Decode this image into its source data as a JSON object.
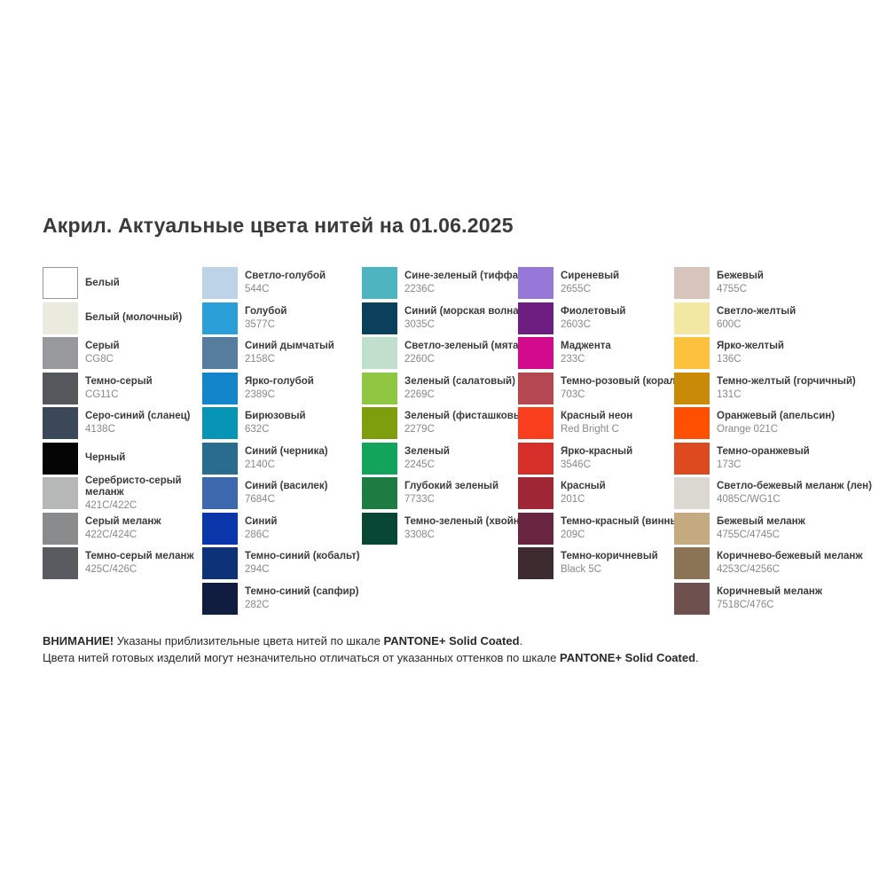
{
  "title": "Акрил. Актуальные цвета нитей на 01.06.2025",
  "pantone_scale": "PANTONE+ Solid Coated",
  "columns": [
    {
      "items": [
        {
          "name": "Белый",
          "code": "",
          "color": "#FFFFFF",
          "border": true
        },
        {
          "name": "Белый (молочный)",
          "code": "",
          "color": "#EAEADF"
        },
        {
          "name": "Серый",
          "code": "CG8C",
          "color": "#97999C"
        },
        {
          "name": "Темно-серый",
          "code": "CG11C",
          "color": "#54575B"
        },
        {
          "name": "Серо-синий (сланец)",
          "code": "4138C",
          "color": "#3A4857"
        },
        {
          "name": "Черный",
          "code": "",
          "color": "#050505"
        },
        {
          "name": "Серебристо-серый меланж",
          "code": "421C/422C",
          "color": "#B6B8B7",
          "wrap": true
        },
        {
          "name": "Серый меланж",
          "code": "422C/424C",
          "color": "#898B8D"
        },
        {
          "name": "Темно-серый меланж",
          "code": "425C/426C",
          "color": "#585B5F"
        }
      ]
    },
    {
      "items": [
        {
          "name": "Светло-голубой",
          "code": "544C",
          "color": "#BCD4E6"
        },
        {
          "name": "Голубой",
          "code": "3577C",
          "color": "#2B9FD8"
        },
        {
          "name": "Синий дымчатый",
          "code": "2158C",
          "color": "#567D9E"
        },
        {
          "name": "Ярко-голубой",
          "code": "2389C",
          "color": "#1386CB"
        },
        {
          "name": "Бирюзовый",
          "code": "632C",
          "color": "#0795B5"
        },
        {
          "name": "Синий (черника)",
          "code": "2140C",
          "color": "#2A6C8E"
        },
        {
          "name": "Синий (василек)",
          "code": "7684C",
          "color": "#3E68AE"
        },
        {
          "name": "Синий",
          "code": "286C",
          "color": "#0936A8"
        },
        {
          "name": "Темно-синий (кобальт)",
          "code": "294C",
          "color": "#0E3277"
        },
        {
          "name": "Темно-синий (сапфир)",
          "code": "282C",
          "color": "#101D40"
        }
      ]
    },
    {
      "items": [
        {
          "name": "Сине-зеленый (тиффани)",
          "code": "2236C",
          "color": "#4DB5C0"
        },
        {
          "name": "Синий (морская волна)",
          "code": "3035C",
          "color": "#0A405A"
        },
        {
          "name": "Светло-зеленый (мята)",
          "code": "2260C",
          "color": "#C1E0CB"
        },
        {
          "name": "Зеленый (салатовый)",
          "code": "2269C",
          "color": "#8FC742"
        },
        {
          "name": "Зеленый (фисташковый)",
          "code": "2279C",
          "color": "#7E9E0C"
        },
        {
          "name": "Зеленый",
          "code": "2245C",
          "color": "#13A45B"
        },
        {
          "name": "Глубокий зеленый",
          "code": "7733C",
          "color": "#1E7B42"
        },
        {
          "name": "Темно-зеленый (хвойный)",
          "code": "3308C",
          "color": "#084734"
        }
      ]
    },
    {
      "items": [
        {
          "name": "Сиреневый",
          "code": "2655C",
          "color": "#9678D9"
        },
        {
          "name": "Фиолетовый",
          "code": "2603C",
          "color": "#6E1E80"
        },
        {
          "name": "Маджента",
          "code": "233C",
          "color": "#D20A8E"
        },
        {
          "name": "Темно-розовый (коралл)",
          "code": "703C",
          "color": "#B54751"
        },
        {
          "name": "Красный неон",
          "code": "Red Bright C",
          "color": "#F93E1D"
        },
        {
          "name": "Ярко-красный",
          "code": "3546C",
          "color": "#D62E29"
        },
        {
          "name": "Красный",
          "code": "201C",
          "color": "#9E2736"
        },
        {
          "name": "Темно-красный (винный)",
          "code": "209C",
          "color": "#6A2640"
        },
        {
          "name": "Темно-коричневый",
          "code": "Black 5C",
          "color": "#3E2B30"
        }
      ]
    },
    {
      "items": [
        {
          "name": "Бежевый",
          "code": "4755C",
          "color": "#D7C4BC"
        },
        {
          "name": "Светло-желтый",
          "code": "600C",
          "color": "#F2E8A4"
        },
        {
          "name": "Ярко-желтый",
          "code": "136C",
          "color": "#FCC23E"
        },
        {
          "name": "Темно-желтый (горчичный)",
          "code": "131C",
          "color": "#C98B06"
        },
        {
          "name": "Оранжевый (апельсин)",
          "code": "Orange 021C",
          "color": "#FE5000"
        },
        {
          "name": "Темно-оранжевый",
          "code": "173C",
          "color": "#DC4A1F"
        },
        {
          "name": "Светло-бежевый меланж (лен)",
          "code": "4085C/WG1C",
          "color": "#DAD8D1"
        },
        {
          "name": "Бежевый меланж",
          "code": "4755C/4745C",
          "color": "#C4AA7E"
        },
        {
          "name": "Коричнево-бежевый меланж",
          "code": "4253C/4256C",
          "color": "#8B7356"
        },
        {
          "name": "Коричневый меланж",
          "code": "7518C/476C",
          "color": "#6E514E"
        }
      ]
    }
  ],
  "footer": {
    "lines": [
      {
        "segments": [
          {
            "text": "ВНИМАНИЕ!",
            "bold": true
          },
          {
            "text": " Указаны приблизительные цвета нитей по шкале ",
            "bold": false
          },
          {
            "text": "PANTONE+ Solid Coated",
            "bold": true
          },
          {
            "text": ".",
            "bold": false
          }
        ]
      },
      {
        "segments": [
          {
            "text": "Цвета нитей готовых изделий могут незначительно отличаться от указанных оттенков по шкале ",
            "bold": false
          },
          {
            "text": "PANTONE+ Solid Coated",
            "bold": true
          },
          {
            "text": ".",
            "bold": false
          }
        ]
      }
    ]
  },
  "theme": {
    "background": "#FFFFFF",
    "title_text": "#3A3A3A",
    "name_text": "#3B3B3B",
    "code_text": "#86888B",
    "white_swatch_border": "#979797"
  }
}
